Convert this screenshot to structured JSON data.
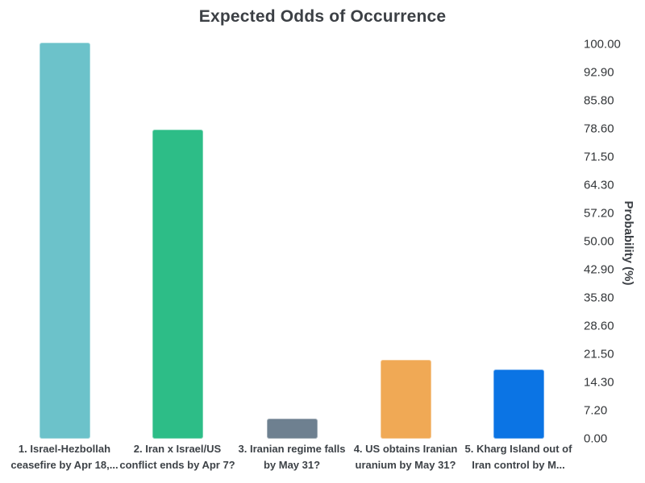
{
  "chart_data": {
    "type": "bar",
    "title": "Expected Odds of Occurrence",
    "xlabel": "",
    "ylabel": "Probability (%)",
    "ylim": [
      0,
      100
    ],
    "grid": false,
    "axis_side": "right",
    "legend": false,
    "yticks": [
      "100.00",
      "92.90",
      "85.80",
      "78.60",
      "71.50",
      "64.30",
      "57.20",
      "50.00",
      "42.90",
      "35.80",
      "28.60",
      "21.50",
      "14.30",
      "7.20",
      "0.00"
    ],
    "categories": [
      "1. Israel-Hezbollah ceasefire by Apr 18,...",
      "2. Iran x Israel/US conflict ends by Apr 7?",
      "3. Iranian regime falls by May 31?",
      "4. US obtains Iranian uranium by May 31?",
      "5. Kharg Island out of Iran control by M..."
    ],
    "category_lines": [
      [
        "1. Israel-Hezbollah",
        "ceasefire by Apr 18,..."
      ],
      [
        "2. Iran x Israel/US",
        "conflict ends by Apr 7?"
      ],
      [
        "3. Iranian regime falls",
        "by May 31?"
      ],
      [
        "4. US obtains Iranian",
        "uranium by May 31?"
      ],
      [
        "5. Kharg Island out of",
        "Iran control by M..."
      ]
    ],
    "values": [
      100,
      78,
      5,
      20,
      17.5
    ],
    "bar_colors": [
      "#6cc2ca",
      "#2dbd87",
      "#6e8090",
      "#f0a955",
      "#0b74e4"
    ]
  },
  "colors": {
    "background": "#ffffff",
    "title_text": "#3c4045",
    "tick_text": "#333639",
    "category_text": "#3d4247"
  }
}
